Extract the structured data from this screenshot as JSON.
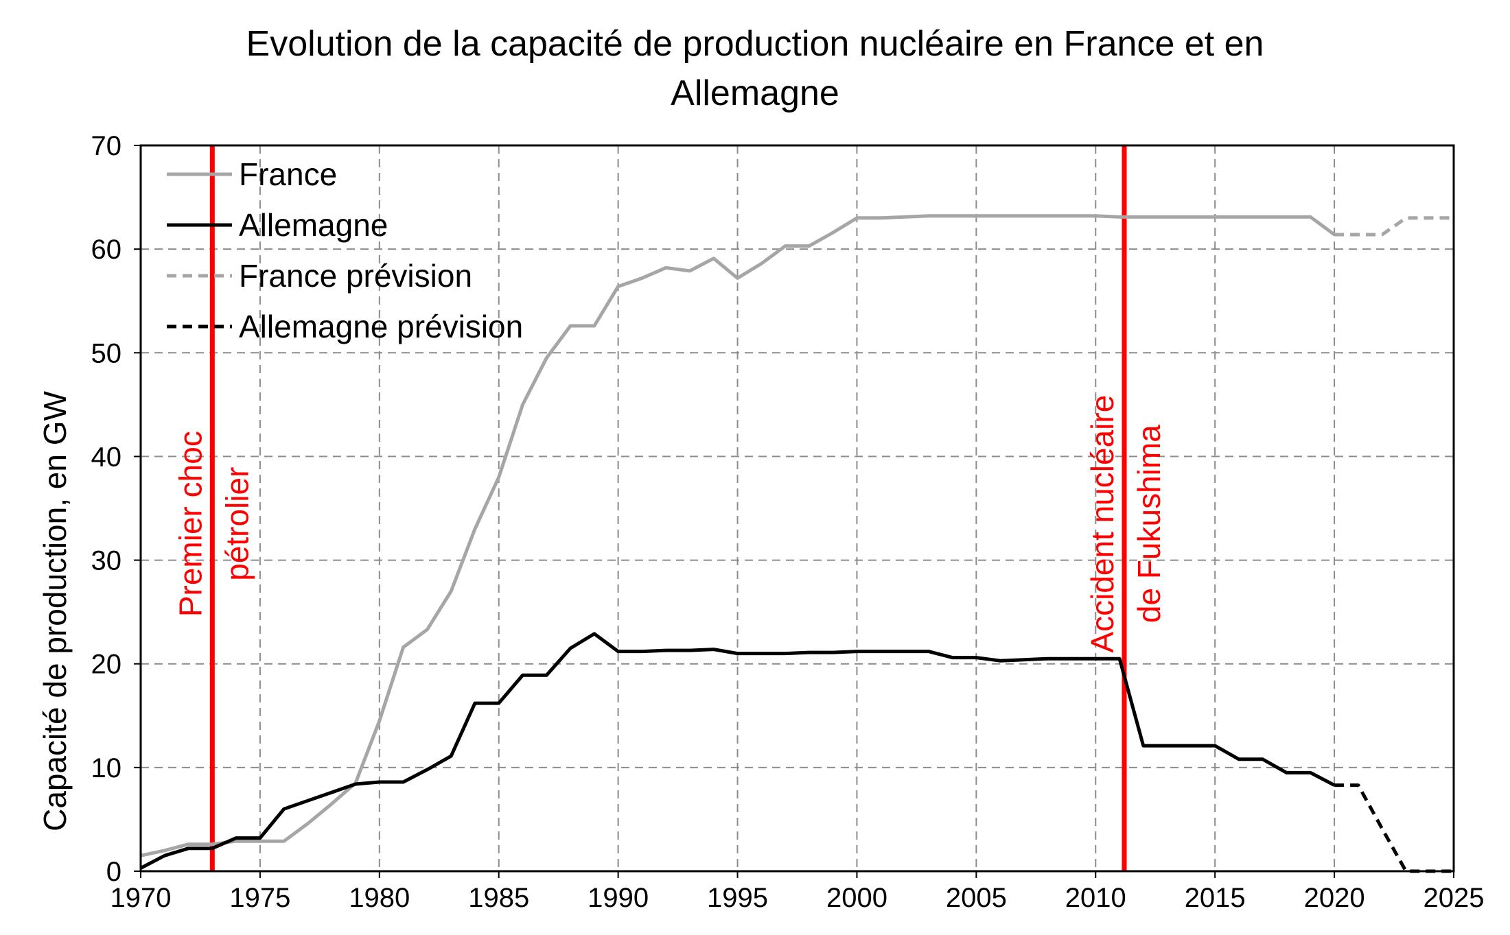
{
  "chart_data": {
    "type": "line",
    "title_line1": "Evolution de la capacité de production nucléaire en France et en",
    "title_line2": "Allemagne",
    "xlabel": "",
    "ylabel": "Capacité de production, en GW",
    "xlim": [
      1970,
      2025
    ],
    "ylim": [
      0,
      70
    ],
    "x_ticks": [
      1970,
      1975,
      1980,
      1985,
      1990,
      1995,
      2000,
      2005,
      2010,
      2015,
      2020,
      2025
    ],
    "y_ticks": [
      0,
      10,
      20,
      30,
      40,
      50,
      60,
      70
    ],
    "grid": true,
    "legend_position": "top-left",
    "series": [
      {
        "name": "France",
        "color": "#a6a6a6",
        "style": "solid",
        "x": [
          1970,
          1971,
          1972,
          1973,
          1974,
          1975,
          1976,
          1977,
          1978,
          1979,
          1980,
          1981,
          1982,
          1983,
          1984,
          1985,
          1986,
          1987,
          1988,
          1989,
          1990,
          1991,
          1992,
          1993,
          1994,
          1995,
          1996,
          1997,
          1998,
          1999,
          2000,
          2001,
          2002,
          2003,
          2004,
          2005,
          2006,
          2007,
          2008,
          2009,
          2010,
          2011,
          2012,
          2013,
          2014,
          2015,
          2016,
          2017,
          2018,
          2019,
          2020
        ],
        "y": [
          1.5,
          2.0,
          2.6,
          2.6,
          2.9,
          2.9,
          2.9,
          4.6,
          6.5,
          8.5,
          14.5,
          21.6,
          23.3,
          27.0,
          33.0,
          38.0,
          45.0,
          49.5,
          52.6,
          52.6,
          56.4,
          57.2,
          58.2,
          57.9,
          59.1,
          57.2,
          58.6,
          60.3,
          60.3,
          61.6,
          63.0,
          63.0,
          63.1,
          63.2,
          63.2,
          63.2,
          63.2,
          63.2,
          63.2,
          63.2,
          63.2,
          63.1,
          63.1,
          63.1,
          63.1,
          63.1,
          63.1,
          63.1,
          63.1,
          63.1,
          61.4
        ]
      },
      {
        "name": "Allemagne",
        "color": "#000000",
        "style": "solid",
        "x": [
          1970,
          1971,
          1972,
          1973,
          1974,
          1975,
          1976,
          1977,
          1978,
          1979,
          1980,
          1981,
          1982,
          1983,
          1984,
          1985,
          1986,
          1987,
          1988,
          1989,
          1990,
          1991,
          1992,
          1993,
          1994,
          1995,
          1996,
          1997,
          1998,
          1999,
          2000,
          2001,
          2002,
          2003,
          2004,
          2005,
          2006,
          2007,
          2008,
          2009,
          2010,
          2011,
          2012,
          2013,
          2014,
          2015,
          2016,
          2017,
          2018,
          2019,
          2020
        ],
        "y": [
          0.3,
          1.5,
          2.2,
          2.2,
          3.2,
          3.2,
          6.0,
          6.8,
          7.6,
          8.4,
          8.6,
          8.6,
          9.8,
          11.1,
          16.2,
          16.2,
          18.9,
          18.9,
          21.5,
          22.9,
          21.2,
          21.2,
          21.3,
          21.3,
          21.4,
          21.0,
          21.0,
          21.0,
          21.1,
          21.1,
          21.2,
          21.2,
          21.2,
          21.2,
          20.6,
          20.6,
          20.3,
          20.4,
          20.5,
          20.5,
          20.5,
          20.5,
          12.1,
          12.1,
          12.1,
          12.1,
          10.8,
          10.8,
          9.5,
          9.5,
          8.3
        ]
      },
      {
        "name": "France prévision",
        "color": "#a6a6a6",
        "style": "dashed",
        "x": [
          2020,
          2021,
          2022,
          2023,
          2024,
          2025
        ],
        "y": [
          61.4,
          61.4,
          61.4,
          63.0,
          63.0,
          63.0
        ]
      },
      {
        "name": "Allemagne prévision",
        "color": "#000000",
        "style": "dashed",
        "x": [
          2020,
          2021,
          2022,
          2023,
          2024,
          2025
        ],
        "y": [
          8.3,
          8.3,
          4.1,
          0,
          0,
          0
        ]
      }
    ],
    "events": [
      {
        "x": 1973,
        "line1": "Premier choc",
        "line2": "pétrolier",
        "color": "#ff0000"
      },
      {
        "x": 2011.2,
        "line1": "Accident nucléaire",
        "line2": "de Fukushima",
        "color": "#ff0000"
      }
    ]
  }
}
